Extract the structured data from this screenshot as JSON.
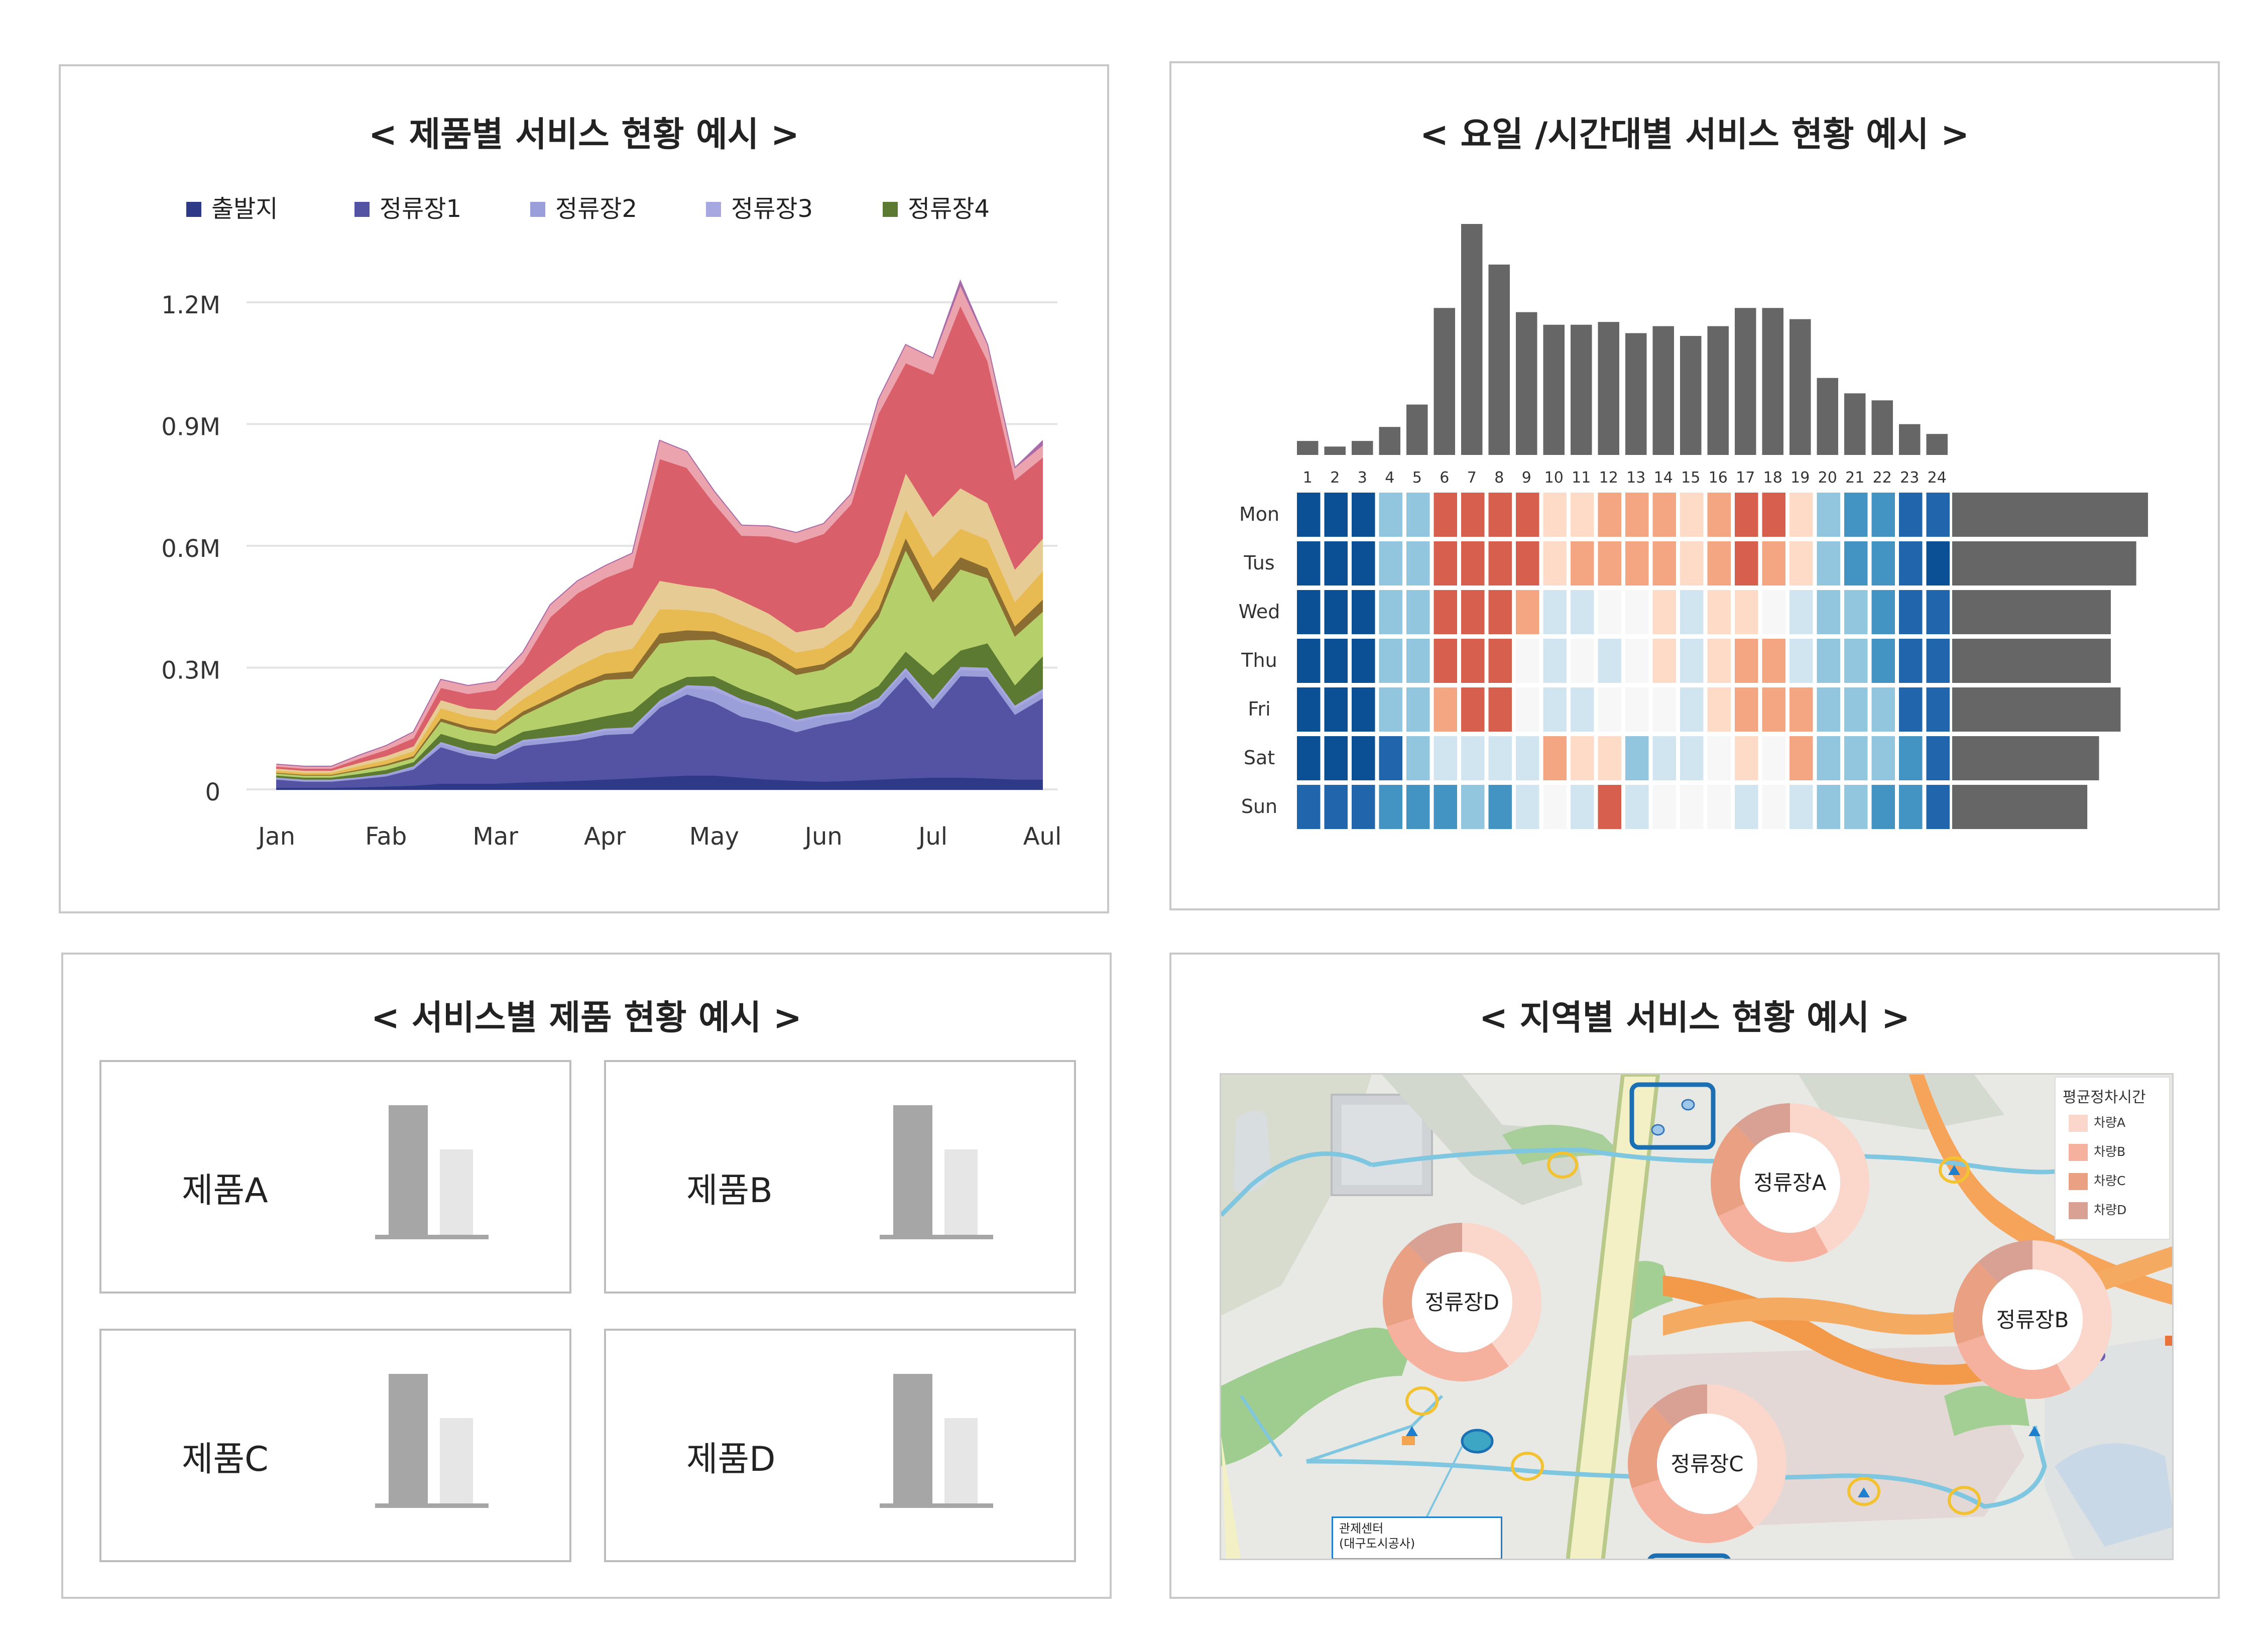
{
  "panels": {
    "product_service": {
      "title": "< 제품별 서비스 현황 예시 >"
    },
    "day_hour": {
      "title": "< 요일 /시간대별 서비스 현황 예시 >"
    },
    "service_product": {
      "title": "< 서비스별 제품 현황 예시 >"
    },
    "region_service": {
      "title": "< 지역별 서비스 현황 예시 >"
    }
  },
  "chart_data": [
    {
      "type": "area",
      "stacked": true,
      "categories": [
        "Jan",
        "Fab",
        "Mar",
        "Apr",
        "May",
        "Jun",
        "Jul",
        "Aul"
      ],
      "x": [
        0,
        0.25,
        0.5,
        0.75,
        1,
        1.25,
        1.5,
        1.75,
        2,
        2.25,
        2.5,
        2.75,
        3,
        3.25,
        3.5,
        3.75,
        4,
        4.25,
        4.5,
        4.75,
        5,
        5.25,
        5.5,
        5.75,
        6,
        6.25,
        6.5,
        6.75,
        7
      ],
      "series": [
        {
          "name": "출발지",
          "color": "#2e3a87",
          "values": [
            5000,
            5000,
            5000,
            6000,
            8000,
            10000,
            15000,
            15000,
            15000,
            18000,
            20000,
            22000,
            25000,
            28000,
            32000,
            35000,
            35000,
            30000,
            25000,
            22000,
            20000,
            22000,
            25000,
            28000,
            30000,
            30000,
            28000,
            25000,
            25000
          ]
        },
        {
          "name": "정류장1",
          "color": "#5452a3",
          "values": [
            20000,
            15000,
            15000,
            20000,
            25000,
            40000,
            90000,
            70000,
            60000,
            90000,
            95000,
            100000,
            110000,
            110000,
            170000,
            200000,
            180000,
            150000,
            140000,
            120000,
            140000,
            150000,
            180000,
            250000,
            170000,
            250000,
            250000,
            160000,
            200000
          ]
        },
        {
          "name": "정류장2",
          "color": "#9a9fd9",
          "values": [
            3000,
            3000,
            3000,
            3000,
            4000,
            5000,
            8000,
            8000,
            8000,
            10000,
            10000,
            10000,
            10000,
            10000,
            10000,
            15000,
            30000,
            35000,
            30000,
            25000,
            20000,
            15000,
            15000,
            15000,
            15000,
            15000,
            15000,
            15000,
            15000
          ]
        },
        {
          "name": "정류장3",
          "color": "#a8a8e0",
          "values": [
            2000,
            2000,
            2000,
            2000,
            2000,
            3000,
            5000,
            5000,
            5000,
            5000,
            5000,
            5000,
            6000,
            6000,
            8000,
            8000,
            10000,
            8000,
            8000,
            6000,
            6000,
            6000,
            6000,
            8000,
            8000,
            8000,
            8000,
            8000,
            8000
          ]
        },
        {
          "name": "정류장4",
          "color": "#5c7a32",
          "values": [
            5000,
            5000,
            5000,
            8000,
            10000,
            10000,
            20000,
            20000,
            20000,
            20000,
            25000,
            30000,
            30000,
            40000,
            30000,
            20000,
            25000,
            25000,
            20000,
            20000,
            20000,
            25000,
            30000,
            40000,
            60000,
            40000,
            60000,
            50000,
            80000
          ]
        },
        {
          "name": "",
          "color": "#b5cf6b",
          "values": [
            5000,
            5000,
            5000,
            8000,
            10000,
            10000,
            30000,
            30000,
            30000,
            40000,
            60000,
            80000,
            90000,
            80000,
            110000,
            90000,
            90000,
            100000,
            100000,
            90000,
            90000,
            120000,
            170000,
            250000,
            180000,
            200000,
            160000,
            120000,
            110000
          ]
        },
        {
          "name": "",
          "color": "#8c6d31",
          "values": [
            2000,
            2000,
            2000,
            3000,
            4000,
            5000,
            8000,
            8000,
            8000,
            10000,
            10000,
            12000,
            15000,
            18000,
            25000,
            25000,
            20000,
            18000,
            16000,
            15000,
            14000,
            15000,
            20000,
            30000,
            30000,
            30000,
            25000,
            25000,
            30000
          ]
        },
        {
          "name": "",
          "color": "#e7ba52",
          "values": [
            5000,
            5000,
            5000,
            8000,
            10000,
            12000,
            25000,
            25000,
            25000,
            30000,
            40000,
            45000,
            50000,
            55000,
            60000,
            50000,
            45000,
            40000,
            40000,
            40000,
            40000,
            45000,
            60000,
            70000,
            80000,
            70000,
            70000,
            60000,
            70000
          ]
        },
        {
          "name": "",
          "color": "#e7cb94",
          "values": [
            5000,
            5000,
            5000,
            8000,
            10000,
            12000,
            20000,
            20000,
            25000,
            30000,
            40000,
            50000,
            55000,
            60000,
            70000,
            60000,
            60000,
            60000,
            55000,
            50000,
            50000,
            55000,
            70000,
            90000,
            100000,
            100000,
            90000,
            80000,
            80000
          ]
        },
        {
          "name": "",
          "color": "#d95f6b",
          "values": [
            5000,
            5000,
            5000,
            10000,
            15000,
            20000,
            30000,
            35000,
            50000,
            60000,
            120000,
            130000,
            130000,
            140000,
            300000,
            290000,
            210000,
            160000,
            190000,
            220000,
            230000,
            250000,
            350000,
            270000,
            350000,
            450000,
            350000,
            220000,
            200000
          ]
        },
        {
          "name": "",
          "color": "#eba4ad",
          "values": [
            5000,
            5000,
            5000,
            8000,
            10000,
            15000,
            20000,
            20000,
            20000,
            25000,
            30000,
            30000,
            30000,
            35000,
            45000,
            40000,
            30000,
            25000,
            25000,
            25000,
            25000,
            25000,
            35000,
            45000,
            40000,
            50000,
            40000,
            30000,
            30000
          ]
        },
        {
          "name": "",
          "color": "#a86ba9",
          "values": [
            0,
            0,
            0,
            0,
            0,
            0,
            0,
            0,
            0,
            0,
            0,
            0,
            0,
            0,
            0,
            0,
            0,
            0,
            0,
            0,
            0,
            0,
            0,
            0,
            0,
            10000,
            0,
            0,
            10000
          ]
        }
      ],
      "yticks": [
        "0",
        "0.3M",
        "0.6M",
        "0.9M",
        "1.2M"
      ],
      "ylim": [
        0,
        1200000
      ],
      "grid": true,
      "legend": "top"
    },
    {
      "type": "heatmap",
      "hours": [
        "1",
        "2",
        "3",
        "4",
        "5",
        "6",
        "7",
        "8",
        "9",
        "10",
        "11",
        "12",
        "13",
        "14",
        "15",
        "16",
        "17",
        "18",
        "19",
        "20",
        "21",
        "22",
        "23",
        "24"
      ],
      "days": [
        "Mon",
        "Tus",
        "Wed",
        "Thu",
        "Fri",
        "Sat",
        "Sun"
      ],
      "hour_totals": [
        10,
        6,
        10,
        20,
        36,
        105,
        165,
        136,
        102,
        93,
        93,
        95,
        87,
        92,
        85,
        92,
        105,
        105,
        97,
        55,
        44,
        39,
        22,
        15
      ],
      "day_totals": [
        100,
        94,
        81,
        81,
        86,
        75,
        69
      ],
      "levels": [
        [
          9,
          9,
          9,
          6,
          6,
          1,
          1,
          1,
          1,
          3,
          3,
          2,
          2,
          2,
          3,
          2,
          1,
          1,
          3,
          6,
          7,
          7,
          8,
          8
        ],
        [
          9,
          9,
          9,
          6,
          6,
          1,
          1,
          1,
          1,
          3,
          2,
          2,
          2,
          2,
          3,
          2,
          1,
          2,
          3,
          6,
          7,
          7,
          8,
          9
        ],
        [
          9,
          9,
          9,
          6,
          6,
          1,
          1,
          1,
          2,
          5,
          5,
          4,
          4,
          3,
          5,
          3,
          3,
          4,
          5,
          6,
          6,
          7,
          8,
          8
        ],
        [
          9,
          9,
          9,
          6,
          6,
          1,
          1,
          1,
          4,
          5,
          4,
          5,
          4,
          3,
          5,
          3,
          2,
          2,
          5,
          6,
          6,
          7,
          8,
          8
        ],
        [
          9,
          9,
          9,
          6,
          6,
          2,
          1,
          1,
          4,
          5,
          5,
          4,
          4,
          4,
          5,
          3,
          2,
          2,
          2,
          6,
          6,
          6,
          8,
          8
        ],
        [
          9,
          9,
          9,
          8,
          6,
          5,
          5,
          5,
          5,
          2,
          3,
          3,
          6,
          5,
          5,
          4,
          3,
          4,
          2,
          6,
          6,
          6,
          7,
          8
        ],
        [
          8,
          8,
          8,
          7,
          7,
          7,
          6,
          7,
          5,
          4,
          5,
          1,
          5,
          4,
          4,
          4,
          5,
          4,
          5,
          6,
          6,
          7,
          7,
          8
        ]
      ],
      "palette": [
        "#b2182b",
        "#d6604d",
        "#f4a582",
        "#fddbc7",
        "#f7f7f7",
        "#d1e5f0",
        "#92c5de",
        "#4393c3",
        "#2166ac",
        "#0b4f94"
      ],
      "bar_color": "#666666"
    }
  ],
  "products": [
    {
      "label": "제품A",
      "big": 100,
      "small": 66
    },
    {
      "label": "제품B",
      "big": 100,
      "small": 66
    },
    {
      "label": "제품C",
      "big": 100,
      "small": 66
    },
    {
      "label": "제품D",
      "big": 100,
      "small": 66
    }
  ],
  "product_bar_colors": {
    "big": "#a6a6a6",
    "small": "#e6e6e6"
  },
  "map": {
    "legend_title": "평균정차시간",
    "legend": [
      {
        "label": "차량A",
        "color": "#fbd6cb"
      },
      {
        "label": "차량B",
        "color": "#f5b19d"
      },
      {
        "label": "차량C",
        "color": "#e9a083"
      },
      {
        "label": "차량D",
        "color": "#d9a094"
      }
    ],
    "stations": [
      {
        "label": "정류장A",
        "shares": [
          0.42,
          0.26,
          0.2,
          0.12
        ]
      },
      {
        "label": "정류장B",
        "shares": [
          0.42,
          0.28,
          0.18,
          0.12
        ]
      },
      {
        "label": "정류장C",
        "shares": [
          0.4,
          0.3,
          0.18,
          0.12
        ]
      },
      {
        "label": "정류장D",
        "shares": [
          0.4,
          0.3,
          0.18,
          0.12
        ]
      }
    ],
    "control_center": [
      "관제센터",
      "(대구도시공사)"
    ]
  }
}
